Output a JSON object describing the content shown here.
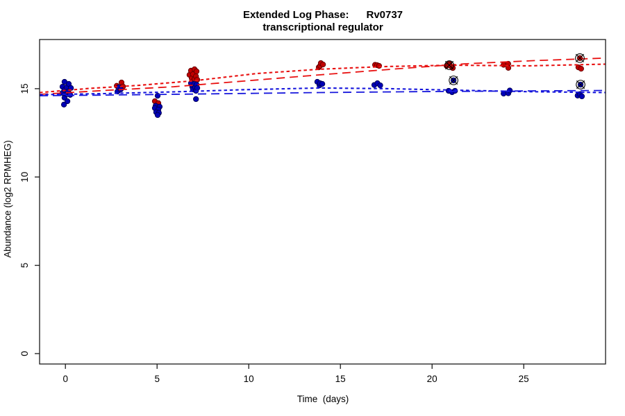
{
  "figure": {
    "title_line1": "Extended Log Phase:      Rv0737",
    "title_line2": "transcriptional regulator",
    "xlabel": "Time  (days)",
    "ylabel": "Abundance  (log2 RPMHEG)"
  },
  "chart_data": {
    "type": "scatter",
    "title": "Extended Log Phase: Rv0737 transcriptional regulator",
    "xlabel": "Time (days)",
    "ylabel": "Abundance (log2 RPMHEG)",
    "x_ticks": [
      0,
      5,
      10,
      15,
      20,
      25
    ],
    "y_ticks": [
      0,
      5,
      10,
      15
    ],
    "xlim": [
      -1.4,
      29.5
    ],
    "ylim": [
      -0.6,
      17.8
    ],
    "grid": false,
    "legend": "none",
    "colors": {
      "red_point_fill": "#c00000",
      "red_point_stroke": "#600000",
      "blue_point_fill": "#0000b6",
      "blue_point_stroke": "#000050",
      "red_line": "#e81010",
      "blue_line": "#1616dc",
      "marker_black": "#000000"
    },
    "series": [
      {
        "name": "red-condition-points",
        "color_key": "red",
        "points": [
          [
            0.11,
            14.8
          ],
          [
            0.22,
            14.72
          ],
          [
            2.8,
            15.16
          ],
          [
            3.06,
            15.35
          ],
          [
            3.14,
            15.12
          ],
          [
            4.88,
            14.29
          ],
          [
            5.07,
            14.18
          ],
          [
            6.77,
            15.78
          ],
          [
            6.85,
            16.02
          ],
          [
            6.89,
            15.59
          ],
          [
            6.96,
            15.82
          ],
          [
            6.96,
            15.39
          ],
          [
            7.04,
            16.1
          ],
          [
            7.04,
            15.55
          ],
          [
            7.12,
            15.7
          ],
          [
            7.15,
            15.98
          ],
          [
            7.19,
            15.51
          ],
          [
            13.82,
            16.21
          ],
          [
            13.89,
            16.29
          ],
          [
            13.93,
            16.45
          ],
          [
            14.05,
            16.37
          ],
          [
            16.89,
            16.35
          ],
          [
            17.0,
            16.33
          ],
          [
            17.11,
            16.29
          ],
          [
            20.79,
            16.29
          ],
          [
            20.94,
            16.41
          ],
          [
            21.06,
            16.25
          ],
          [
            21.13,
            16.17
          ],
          [
            23.9,
            16.35
          ],
          [
            24.15,
            16.41
          ],
          [
            24.16,
            16.18
          ],
          [
            27.98,
            16.21
          ],
          [
            28.13,
            16.13
          ]
        ]
      },
      {
        "name": "blue-condition-points",
        "color_key": "blue",
        "points": [
          [
            -0.16,
            15.11
          ],
          [
            -0.16,
            14.76
          ],
          [
            -0.08,
            14.1
          ],
          [
            -0.05,
            15.39
          ],
          [
            -0.05,
            14.92
          ],
          [
            -0.05,
            14.49
          ],
          [
            0.07,
            15.08
          ],
          [
            0.07,
            14.69
          ],
          [
            0.11,
            14.29
          ],
          [
            0.14,
            14.84
          ],
          [
            0.18,
            15.27
          ],
          [
            0.26,
            14.65
          ],
          [
            0.3,
            15.04
          ],
          [
            2.84,
            14.84
          ],
          [
            2.91,
            15.08
          ],
          [
            3.02,
            14.96
          ],
          [
            5.03,
            14.6
          ],
          [
            4.92,
            14.03
          ],
          [
            5.14,
            13.98
          ],
          [
            4.88,
            13.9
          ],
          [
            5.07,
            13.82
          ],
          [
            4.95,
            13.67
          ],
          [
            5.1,
            13.63
          ],
          [
            5.03,
            13.51
          ],
          [
            6.85,
            15.31
          ],
          [
            6.92,
            15.11
          ],
          [
            6.96,
            14.96
          ],
          [
            7.04,
            15.27
          ],
          [
            7.08,
            15.08
          ],
          [
            7.12,
            14.88
          ],
          [
            7.12,
            14.41
          ],
          [
            7.15,
            15.23
          ],
          [
            7.19,
            15.04
          ],
          [
            13.74,
            15.39
          ],
          [
            13.86,
            15.19
          ],
          [
            13.89,
            15.31
          ],
          [
            14.01,
            15.27
          ],
          [
            16.85,
            15.21
          ],
          [
            17.02,
            15.31
          ],
          [
            17.17,
            15.19
          ],
          [
            20.9,
            14.88
          ],
          [
            21.09,
            14.8
          ],
          [
            21.25,
            14.88
          ],
          [
            23.9,
            14.72
          ],
          [
            24.16,
            14.74
          ],
          [
            24.24,
            14.9
          ],
          [
            27.94,
            14.61
          ],
          [
            28.06,
            14.69
          ],
          [
            28.17,
            14.57
          ]
        ]
      },
      {
        "name": "flagged-red-points",
        "color_key": "red",
        "marker": "circle-x",
        "points": [
          [
            20.94,
            16.33
          ],
          [
            28.06,
            16.73
          ]
        ]
      },
      {
        "name": "flagged-blue-points",
        "color_key": "blue",
        "marker": "circle-x",
        "points": [
          [
            21.17,
            15.47
          ],
          [
            28.1,
            15.23
          ]
        ]
      }
    ],
    "trend_lines": [
      {
        "name": "red-short-dash-fit",
        "color_key": "red",
        "dash": "short",
        "points": [
          [
            -1.41,
            14.78
          ],
          [
            1.36,
            15.02
          ],
          [
            4.01,
            15.19
          ],
          [
            7.04,
            15.45
          ],
          [
            10.45,
            15.86
          ],
          [
            13.85,
            16.1
          ],
          [
            17.26,
            16.25
          ],
          [
            21.05,
            16.33
          ],
          [
            25.22,
            16.29
          ],
          [
            29.46,
            16.39
          ]
        ]
      },
      {
        "name": "red-long-dash-fit",
        "color_key": "red",
        "dash": "long",
        "points": [
          [
            -1.41,
            14.68
          ],
          [
            2.11,
            14.9
          ],
          [
            5.9,
            15.11
          ],
          [
            9.69,
            15.43
          ],
          [
            13.85,
            15.78
          ],
          [
            18.02,
            16.12
          ],
          [
            21.81,
            16.41
          ],
          [
            25.6,
            16.59
          ],
          [
            29.46,
            16.73
          ]
        ]
      },
      {
        "name": "blue-short-dash-fit",
        "color_key": "blue",
        "dash": "short",
        "points": [
          [
            -1.41,
            14.66
          ],
          [
            2.11,
            14.72
          ],
          [
            5.9,
            14.82
          ],
          [
            9.69,
            14.94
          ],
          [
            13.85,
            15.04
          ],
          [
            17.64,
            15.0
          ],
          [
            21.05,
            14.92
          ],
          [
            25.22,
            14.83
          ],
          [
            29.46,
            14.78
          ]
        ]
      },
      {
        "name": "blue-long-dash-fit",
        "color_key": "blue",
        "dash": "long",
        "points": [
          [
            -1.41,
            14.6
          ],
          [
            4.01,
            14.66
          ],
          [
            9.69,
            14.73
          ],
          [
            13.85,
            14.78
          ],
          [
            19.16,
            14.83
          ],
          [
            24.84,
            14.87
          ],
          [
            29.46,
            14.9
          ]
        ]
      }
    ]
  }
}
